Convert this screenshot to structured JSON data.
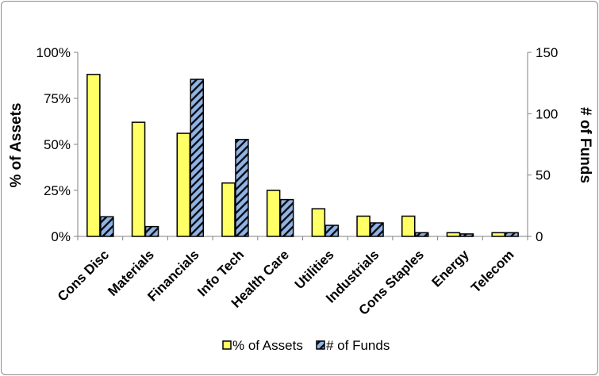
{
  "chart_data": {
    "type": "bar",
    "categories": [
      "Cons Disc",
      "Materials",
      "Financials",
      "Info Tech",
      "Health Care",
      "Utilities",
      "Industrials",
      "Cons Staples",
      "Energy",
      "Telecom"
    ],
    "series": [
      {
        "name": "% of Assets",
        "axis": "left",
        "values": [
          88,
          62,
          56,
          29,
          25,
          15,
          11,
          11,
          2,
          2
        ],
        "color": "#ffff66"
      },
      {
        "name": "# of Funds",
        "axis": "right",
        "values": [
          16,
          8,
          128,
          79,
          30,
          9,
          11,
          3,
          2,
          3
        ],
        "color": "#8fb4e3"
      }
    ],
    "ylabel": "% of Assets",
    "y2label": "# of Funds",
    "ylim": [
      0,
      100
    ],
    "y2lim": [
      0,
      150
    ],
    "yticks": [
      "0%",
      "25%",
      "50%",
      "75%",
      "100%"
    ],
    "y2ticks": [
      "0",
      "50",
      "100",
      "150"
    ],
    "legend_position": "bottom",
    "grid": false
  }
}
